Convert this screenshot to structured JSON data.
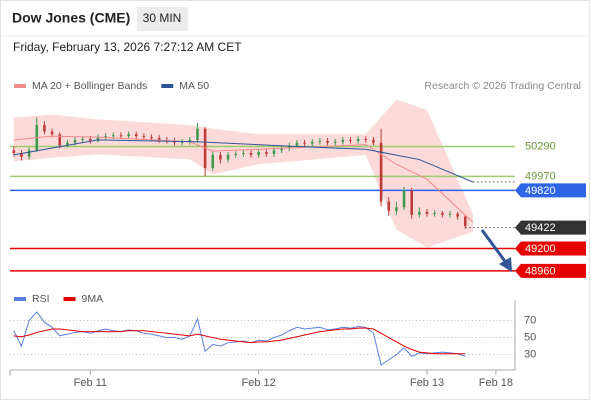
{
  "header": {
    "title": "Dow Jones (CME)",
    "interval": "30 MIN",
    "datetime": "Friday, February 13, 2026 7:27:12 AM CET",
    "credit": "Research © 2026 Trading Central"
  },
  "chart_data": [
    {
      "type": "candlestick",
      "xlim": [
        -0.5,
        65.5
      ],
      "ylim": [
        48820,
        50840
      ],
      "xticks": [
        {
          "value": 10,
          "label": "Feb 11"
        },
        {
          "value": 32,
          "label": "Feb 12"
        },
        {
          "value": 54,
          "label": "Feb 13"
        },
        {
          "value": 63,
          "label": "Feb 18"
        }
      ],
      "up_color": "#3f9a4f",
      "down_color": "#c23b3b",
      "candles": {
        "open": [
          50250,
          50220,
          50180,
          50250,
          50520,
          50450,
          50420,
          50300,
          50330,
          50360,
          50370,
          50350,
          50390,
          50400,
          50410,
          50400,
          50420,
          50400,
          50390,
          50380,
          50360,
          50350,
          50330,
          50340,
          50360,
          50480,
          50060,
          50200,
          50150,
          50200,
          50210,
          50220,
          50200,
          50230,
          50210,
          50250,
          50270,
          50300,
          50330,
          50320,
          50340,
          50350,
          50330,
          50340,
          50360,
          50350,
          50370,
          50360,
          50330,
          49700,
          49600,
          49640,
          49820,
          49560,
          49590,
          49570,
          49580,
          49560,
          49570,
          49540
        ],
        "high": [
          50290,
          50250,
          50280,
          50600,
          50560,
          50480,
          50440,
          50360,
          50390,
          50400,
          50400,
          50420,
          50430,
          50440,
          50440,
          50450,
          50450,
          50430,
          50420,
          50410,
          50390,
          50380,
          50370,
          50390,
          50540,
          50500,
          50240,
          50230,
          50230,
          50240,
          50250,
          50250,
          50260,
          50260,
          50280,
          50300,
          50330,
          50360,
          50360,
          50370,
          50380,
          50380,
          50370,
          50390,
          50390,
          50400,
          50400,
          50390,
          50480,
          49750,
          49700,
          49860,
          49850,
          49640,
          49620,
          49610,
          49600,
          49600,
          49590,
          49560
        ],
        "low": [
          50180,
          50140,
          50150,
          50230,
          50420,
          50390,
          50270,
          50280,
          50300,
          50330,
          50320,
          50330,
          50360,
          50370,
          50370,
          50380,
          50370,
          50360,
          50350,
          50330,
          50320,
          50300,
          50300,
          50310,
          50330,
          49970,
          50030,
          50110,
          50120,
          50170,
          50180,
          50170,
          50170,
          50180,
          50180,
          50220,
          50240,
          50270,
          50290,
          50290,
          50310,
          50300,
          50300,
          50310,
          50320,
          50320,
          50330,
          50300,
          49650,
          49550,
          49560,
          49610,
          49520,
          49530,
          49540,
          49540,
          49530,
          49530,
          49510,
          49410
        ],
        "close": [
          50220,
          50180,
          50250,
          50520,
          50450,
          50420,
          50300,
          50330,
          50360,
          50370,
          50350,
          50390,
          50400,
          50410,
          50400,
          50420,
          50400,
          50390,
          50380,
          50360,
          50350,
          50330,
          50340,
          50360,
          50480,
          50060,
          50200,
          50150,
          50200,
          50210,
          50220,
          50200,
          50230,
          50210,
          50250,
          50270,
          50300,
          50330,
          50320,
          50340,
          50350,
          50330,
          50340,
          50360,
          50350,
          50370,
          50360,
          50330,
          49700,
          49600,
          49640,
          49820,
          49560,
          49590,
          49570,
          49580,
          49560,
          49570,
          49540,
          49440
        ]
      },
      "series": [
        {
          "name": "MA 20 + Bollinger Bands",
          "color": "#f08c8c",
          "band_color": "#fcdada",
          "x": [
            0,
            5,
            11,
            23,
            26,
            32,
            46,
            50,
            54,
            60
          ],
          "values": [
            50360,
            50400,
            50390,
            50340,
            50240,
            50260,
            50310,
            50100,
            49940,
            49480
          ],
          "upper": [
            50600,
            50630,
            50580,
            50520,
            50480,
            50420,
            50420,
            50790,
            50680,
            49565
          ],
          "lower": [
            50130,
            50170,
            50205,
            50150,
            49990,
            50100,
            50200,
            49400,
            49210,
            49380
          ]
        },
        {
          "name": "MA 50",
          "color": "#2f5597",
          "x": [
            0,
            11,
            24,
            37,
            46,
            53,
            60
          ],
          "values": [
            50200,
            50360,
            50340,
            50290,
            50260,
            50150,
            49910
          ]
        }
      ],
      "levels": [
        {
          "value": 50290,
          "color": "#9ccc6c",
          "line": "solid",
          "tag": false
        },
        {
          "value": 49970,
          "color": "#9ccc6c",
          "line": "solid",
          "tag": false
        },
        {
          "value": 49820,
          "color": "#2e64e6",
          "line": "solid",
          "tag": true
        },
        {
          "value": 49422,
          "color": "#333333",
          "line": "dotted",
          "tag": true
        },
        {
          "value": 49200,
          "color": "#e60000",
          "line": "solid",
          "tag": true
        },
        {
          "value": 48960,
          "color": "#e60000",
          "line": "solid",
          "tag": true
        }
      ]
    },
    {
      "type": "line",
      "ylim": [
        12,
        94
      ],
      "yticks": [
        30,
        50,
        70
      ],
      "grid": true,
      "series": [
        {
          "name": "RSI",
          "color": "#5b7fe0",
          "values": [
            58,
            40,
            70,
            80,
            68,
            62,
            52,
            54,
            56,
            57,
            55,
            58,
            60,
            58,
            57,
            59,
            58,
            55,
            54,
            52,
            50,
            50,
            48,
            52,
            72,
            34,
            42,
            40,
            44,
            45,
            46,
            44,
            47,
            46,
            50,
            53,
            58,
            62,
            60,
            61,
            62,
            59,
            60,
            62,
            61,
            63,
            62,
            55,
            18,
            24,
            30,
            38,
            28,
            32,
            31,
            32,
            33,
            32,
            31,
            28
          ]
        },
        {
          "name": "9MA",
          "color": "#e60000",
          "values": [
            52,
            51,
            53,
            56,
            58,
            60,
            60,
            59,
            58,
            57,
            57,
            57,
            57,
            57,
            57,
            58,
            58,
            58,
            57,
            56,
            55,
            54,
            53,
            52,
            54,
            52,
            50,
            48,
            47,
            46,
            45,
            44,
            45,
            45,
            46,
            47,
            49,
            51,
            53,
            55,
            57,
            58,
            59,
            60,
            60,
            61,
            61,
            60,
            55,
            50,
            45,
            40,
            36,
            33,
            32,
            31,
            31,
            31,
            31,
            31
          ]
        }
      ]
    }
  ]
}
